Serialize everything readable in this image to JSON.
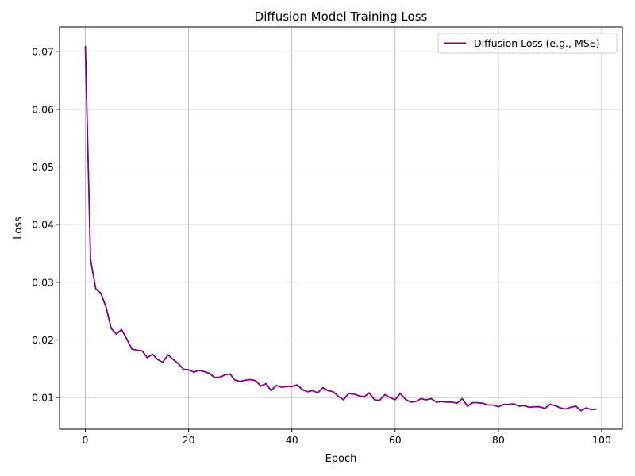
{
  "chart_data": {
    "type": "line",
    "title": "Diffusion Model Training Loss",
    "xlabel": "Epoch",
    "ylabel": "Loss",
    "xlim": [
      -5,
      104
    ],
    "ylim": [
      0.0045,
      0.0743
    ],
    "xticks": [
      0,
      20,
      40,
      60,
      80,
      100
    ],
    "yticks": [
      0.01,
      0.02,
      0.03,
      0.04,
      0.05,
      0.06,
      0.07
    ],
    "xtick_labels": [
      "0",
      "20",
      "40",
      "60",
      "80",
      "100"
    ],
    "ytick_labels": [
      "0.01",
      "0.02",
      "0.03",
      "0.04",
      "0.05",
      "0.06",
      "0.07"
    ],
    "grid": true,
    "legend_position": "top-right",
    "series": [
      {
        "name": "Diffusion Loss (e.g., MSE)",
        "color": "#800080",
        "x": [
          0,
          1,
          2,
          3,
          4,
          5,
          6,
          7,
          8,
          9,
          10,
          11,
          12,
          13,
          14,
          15,
          16,
          17,
          18,
          19,
          20,
          21,
          22,
          23,
          24,
          25,
          26,
          27,
          28,
          29,
          30,
          31,
          32,
          33,
          34,
          35,
          36,
          37,
          38,
          39,
          40,
          41,
          42,
          43,
          44,
          45,
          46,
          47,
          48,
          49,
          50,
          51,
          52,
          53,
          54,
          55,
          56,
          57,
          58,
          59,
          60,
          61,
          62,
          63,
          64,
          65,
          66,
          67,
          68,
          69,
          70,
          71,
          72,
          73,
          74,
          75,
          76,
          77,
          78,
          79,
          80,
          81,
          82,
          83,
          84,
          85,
          86,
          87,
          88,
          89,
          90,
          91,
          92,
          93,
          94,
          95,
          96,
          97,
          98,
          99
        ],
        "values": [
          0.071,
          0.034,
          0.0289,
          0.0281,
          0.0257,
          0.022,
          0.021,
          0.0218,
          0.0202,
          0.0184,
          0.0182,
          0.0181,
          0.0169,
          0.0175,
          0.0166,
          0.0161,
          0.0174,
          0.0166,
          0.0159,
          0.0149,
          0.0148,
          0.0144,
          0.0147,
          0.0145,
          0.0142,
          0.0135,
          0.0135,
          0.0139,
          0.0141,
          0.013,
          0.0128,
          0.013,
          0.0131,
          0.0129,
          0.012,
          0.0124,
          0.0112,
          0.0121,
          0.0118,
          0.0119,
          0.0119,
          0.0122,
          0.0114,
          0.011,
          0.0112,
          0.0108,
          0.0117,
          0.0112,
          0.011,
          0.0102,
          0.0096,
          0.0107,
          0.0106,
          0.0103,
          0.0101,
          0.0108,
          0.0096,
          0.0095,
          0.0105,
          0.01,
          0.0096,
          0.0107,
          0.0097,
          0.0092,
          0.0093,
          0.0098,
          0.0096,
          0.0098,
          0.0092,
          0.0093,
          0.0092,
          0.0092,
          0.009,
          0.0098,
          0.0085,
          0.0091,
          0.0091,
          0.009,
          0.0087,
          0.0087,
          0.0084,
          0.0088,
          0.0088,
          0.0089,
          0.0085,
          0.0086,
          0.0083,
          0.0084,
          0.0084,
          0.0081,
          0.0088,
          0.0086,
          0.0082,
          0.008,
          0.0083,
          0.0085,
          0.0077,
          0.0082,
          0.0079,
          0.008
        ]
      }
    ]
  }
}
